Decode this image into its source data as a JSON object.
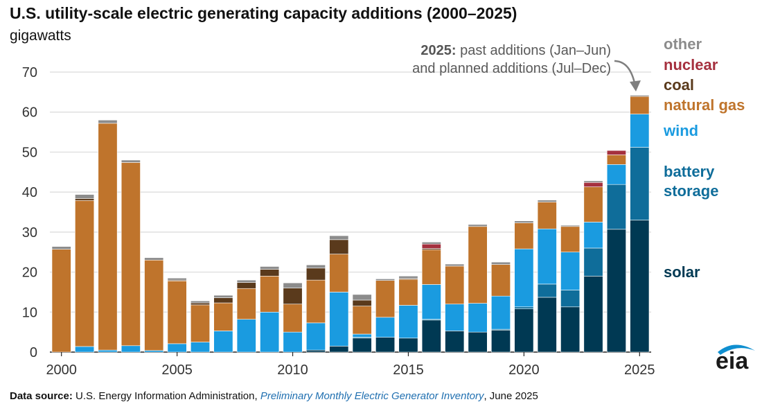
{
  "header": {
    "title": "U.S. utility-scale electric generating capacity additions (2000–2025)",
    "unit": "gigawatts"
  },
  "annotation": {
    "bold": "2025:",
    "line1_rest": " past additions (Jan–Jun)",
    "line2": "and planned additions (Jul–Dec)"
  },
  "footer": {
    "label": "Data source:",
    "org": " U.S. Energy Information Administration, ",
    "publication": "Preliminary Monthly Electric Generator Inventory",
    "date": ", June 2025"
  },
  "logo": {
    "text": "eia"
  },
  "colors": {
    "solar": "#003953",
    "battery storage": "#0f6d9a",
    "wind": "#1a9be0",
    "natural gas": "#bf742c",
    "coal": "#5a3a1c",
    "nuclear": "#a5303e",
    "other": "#8c8c8c"
  },
  "chart_data": {
    "type": "bar",
    "stacked": true,
    "categories": [
      "2000",
      "2001",
      "2002",
      "2003",
      "2004",
      "2005",
      "2006",
      "2007",
      "2008",
      "2009",
      "2010",
      "2011",
      "2012",
      "2013",
      "2014",
      "2015",
      "2016",
      "2017",
      "2018",
      "2019",
      "2020",
      "2021",
      "2022",
      "2023",
      "2024",
      "2025"
    ],
    "x_tick_labels": [
      "2000",
      "2005",
      "2010",
      "2015",
      "2020",
      "2025"
    ],
    "y_tick_labels": [
      "0",
      "10",
      "20",
      "30",
      "40",
      "50",
      "60",
      "70"
    ],
    "ylim": [
      0,
      70
    ],
    "grid": true,
    "legend_placement": "right",
    "series": [
      {
        "name": "solar",
        "values": [
          0,
          0,
          0,
          0,
          0,
          0,
          0,
          0,
          0,
          0,
          0,
          0.5,
          1.5,
          3.5,
          3.7,
          3.5,
          8.0,
          5.3,
          5.0,
          5.5,
          10.8,
          13.7,
          11.3,
          19.0,
          30.7,
          33.0
        ]
      },
      {
        "name": "battery storage",
        "values": [
          0,
          0,
          0,
          0,
          0,
          0,
          0,
          0,
          0,
          0,
          0,
          0,
          0,
          0.2,
          0,
          0,
          0.2,
          0,
          0,
          0.2,
          0.5,
          3.3,
          4.2,
          7.0,
          11.2,
          18.2
        ]
      },
      {
        "name": "wind",
        "values": [
          0,
          1.4,
          0.5,
          1.6,
          0.4,
          2.1,
          2.5,
          5.3,
          8.2,
          10.0,
          5.0,
          6.8,
          13.5,
          0.8,
          5.0,
          8.2,
          8.7,
          6.7,
          7.2,
          8.3,
          14.5,
          13.8,
          9.5,
          6.5,
          5.0,
          8.3
        ]
      },
      {
        "name": "natural gas",
        "values": [
          25.7,
          36.5,
          56.7,
          45.8,
          22.6,
          15.7,
          9.3,
          7.0,
          7.7,
          9.0,
          7.0,
          10.7,
          9.5,
          7.0,
          9.2,
          6.5,
          8.7,
          9.5,
          19.2,
          7.9,
          6.5,
          6.7,
          6.4,
          8.8,
          2.4,
          4.4
        ]
      },
      {
        "name": "coal",
        "values": [
          0,
          0.5,
          0,
          0,
          0,
          0.2,
          0.5,
          1.3,
          1.5,
          1.7,
          4.0,
          3.0,
          3.6,
          1.5,
          0,
          0.2,
          0.3,
          0,
          0,
          0,
          0,
          0,
          0,
          0,
          0,
          0
        ]
      },
      {
        "name": "nuclear",
        "values": [
          0,
          0,
          0,
          0,
          0,
          0,
          0,
          0,
          0,
          0,
          0,
          0,
          0,
          0,
          0,
          0,
          1.1,
          0,
          0,
          0,
          0,
          0,
          0,
          1.1,
          1.1,
          0
        ]
      },
      {
        "name": "other",
        "values": [
          0.7,
          1.0,
          0.8,
          0.6,
          0.6,
          0.5,
          0.5,
          0.6,
          0.6,
          0.7,
          1.3,
          0.8,
          1.0,
          1.4,
          0.4,
          0.6,
          0.5,
          0.5,
          0.5,
          0.6,
          0.5,
          0.5,
          0.3,
          0.4,
          0,
          0.3
        ]
      }
    ]
  }
}
